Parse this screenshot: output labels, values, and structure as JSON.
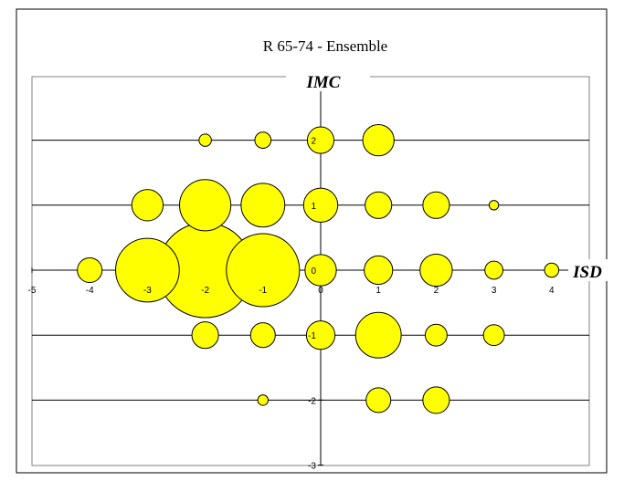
{
  "chart_data": {
    "type": "scatter",
    "subtype": "bubble",
    "title": "R 65-74 - Ensemble",
    "xlabel": "ISD",
    "ylabel": "IMC",
    "xlim": [
      -5,
      5
    ],
    "ylim": [
      -3,
      3
    ],
    "x_ticks": [
      -5,
      -4,
      -3,
      -2,
      -1,
      0,
      1,
      2,
      3,
      4
    ],
    "y_ticks": [
      2,
      1,
      0,
      -1,
      -2,
      -3
    ],
    "x_tick_labels": [
      "-5",
      "-4",
      "-3",
      "-2",
      "-1",
      "0",
      "1",
      "2",
      "3",
      "4"
    ],
    "y_tick_labels": [
      "2",
      "1",
      "0",
      "-1",
      "-2",
      "-3"
    ],
    "gridlines": "horizontal",
    "legend": "none",
    "colors": {
      "bubble_fill": "#ffff00",
      "bubble_stroke": "#000000",
      "axis": "#000000"
    },
    "points": [
      {
        "x": -2,
        "y": 2,
        "size": 0.13
      },
      {
        "x": -1,
        "y": 2,
        "size": 0.17
      },
      {
        "x": 0,
        "y": 2,
        "size": 0.28
      },
      {
        "x": 1,
        "y": 2,
        "size": 0.33
      },
      {
        "x": -3,
        "y": 1,
        "size": 0.33
      },
      {
        "x": -2,
        "y": 1,
        "size": 0.54
      },
      {
        "x": -1,
        "y": 1,
        "size": 0.46
      },
      {
        "x": 0,
        "y": 1,
        "size": 0.36
      },
      {
        "x": 1,
        "y": 1,
        "size": 0.28
      },
      {
        "x": 2,
        "y": 1,
        "size": 0.28
      },
      {
        "x": 3,
        "y": 1,
        "size": 0.1
      },
      {
        "x": -4,
        "y": 0,
        "size": 0.26
      },
      {
        "x": -3,
        "y": 0,
        "size": 0.67
      },
      {
        "x": -2,
        "y": 0,
        "size": 1.0
      },
      {
        "x": -1,
        "y": 0,
        "size": 0.77
      },
      {
        "x": 0,
        "y": 0,
        "size": 0.33
      },
      {
        "x": 1,
        "y": 0,
        "size": 0.3
      },
      {
        "x": 2,
        "y": 0,
        "size": 0.34
      },
      {
        "x": 3,
        "y": 0,
        "size": 0.19
      },
      {
        "x": 4,
        "y": 0,
        "size": 0.15
      },
      {
        "x": -2,
        "y": -1,
        "size": 0.28
      },
      {
        "x": -1,
        "y": -1,
        "size": 0.26
      },
      {
        "x": 0,
        "y": -1,
        "size": 0.3
      },
      {
        "x": 1,
        "y": -1,
        "size": 0.48
      },
      {
        "x": 2,
        "y": -1,
        "size": 0.23
      },
      {
        "x": 3,
        "y": -1,
        "size": 0.22
      },
      {
        "x": -1,
        "y": -2,
        "size": 0.11
      },
      {
        "x": 1,
        "y": -2,
        "size": 0.26
      },
      {
        "x": 2,
        "y": -2,
        "size": 0.28
      }
    ]
  }
}
